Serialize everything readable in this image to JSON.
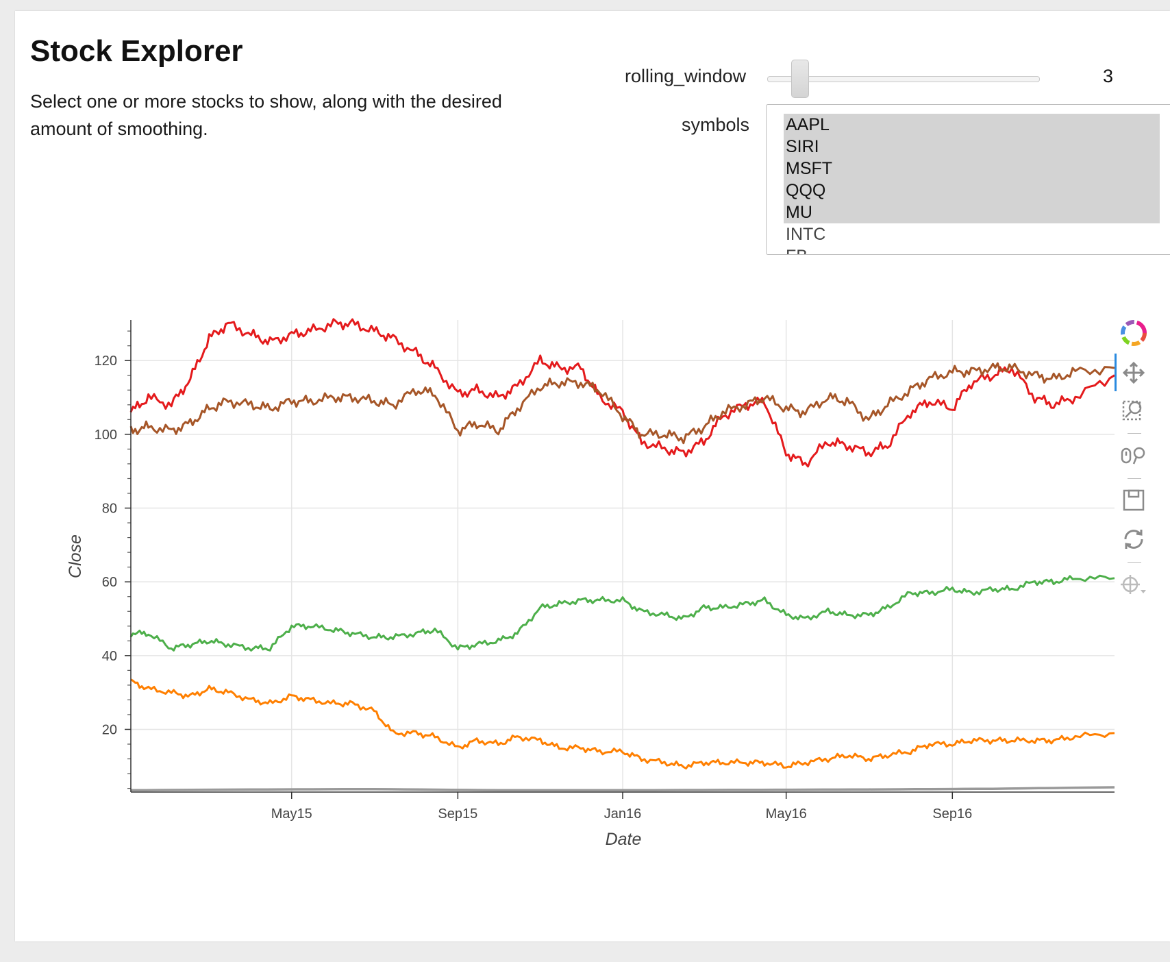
{
  "page": {
    "title": "Stock Explorer",
    "description": "Select one or more stocks to show, along with the desired amount of smoothing."
  },
  "controls": {
    "rolling_window": {
      "label": "rolling_window",
      "value": "3",
      "min": 1,
      "max": 20
    },
    "symbols": {
      "label": "symbols",
      "options": [
        {
          "label": "AAPL",
          "selected": true
        },
        {
          "label": "SIRI",
          "selected": true
        },
        {
          "label": "MSFT",
          "selected": true
        },
        {
          "label": "QQQ",
          "selected": true
        },
        {
          "label": "MU",
          "selected": true
        },
        {
          "label": "INTC",
          "selected": false
        },
        {
          "label": "FB",
          "selected": false
        }
      ]
    }
  },
  "toolbar": {
    "tools": [
      "bokeh-logo-icon",
      "pan-icon",
      "box-zoom-icon",
      "wheel-zoom-icon",
      "save-icon",
      "reset-icon",
      "crosshair-icon"
    ]
  },
  "chart_data": {
    "type": "line",
    "xlabel": "Date",
    "ylabel": "Close",
    "x_range": [
      "2015-01-02",
      "2016-12-30"
    ],
    "ylim": [
      3,
      131
    ],
    "yticks": [
      "20",
      "40",
      "60",
      "80",
      "100",
      "120"
    ],
    "xticks": [
      {
        "date": "2015-05-01",
        "label": "May15"
      },
      {
        "date": "2015-09-01",
        "label": "Sep15"
      },
      {
        "date": "2016-01-01",
        "label": "Jan16"
      },
      {
        "date": "2016-05-01",
        "label": "May16"
      },
      {
        "date": "2016-09-01",
        "label": "Sep16"
      }
    ],
    "grid": true,
    "series": [
      {
        "color": "#e41a1c",
        "points": [
          [
            "2015-01-02",
            106
          ],
          [
            "2015-01-15",
            110
          ],
          [
            "2015-02-01",
            108
          ],
          [
            "2015-02-15",
            115
          ],
          [
            "2015-03-01",
            126
          ],
          [
            "2015-03-15",
            130
          ],
          [
            "2015-04-01",
            127
          ],
          [
            "2015-04-15",
            125
          ],
          [
            "2015-05-01",
            127
          ],
          [
            "2015-05-15",
            128
          ],
          [
            "2015-06-01",
            130
          ],
          [
            "2015-06-15",
            130
          ],
          [
            "2015-07-01",
            128
          ],
          [
            "2015-07-15",
            126
          ],
          [
            "2015-08-01",
            122
          ],
          [
            "2015-08-15",
            118
          ],
          [
            "2015-09-01",
            111
          ],
          [
            "2015-09-15",
            112
          ],
          [
            "2015-10-01",
            110
          ],
          [
            "2015-10-15",
            113
          ],
          [
            "2015-11-01",
            120
          ],
          [
            "2015-11-15",
            118
          ],
          [
            "2015-12-01",
            118
          ],
          [
            "2015-12-15",
            110
          ],
          [
            "2016-01-01",
            106
          ],
          [
            "2016-01-15",
            98
          ],
          [
            "2016-02-01",
            96
          ],
          [
            "2016-02-15",
            95
          ],
          [
            "2016-03-01",
            98
          ],
          [
            "2016-03-15",
            105
          ],
          [
            "2016-04-01",
            108
          ],
          [
            "2016-04-15",
            109
          ],
          [
            "2016-05-01",
            95
          ],
          [
            "2016-05-15",
            92
          ],
          [
            "2016-06-01",
            98
          ],
          [
            "2016-06-15",
            97
          ],
          [
            "2016-07-01",
            95
          ],
          [
            "2016-07-15",
            97
          ],
          [
            "2016-08-01",
            106
          ],
          [
            "2016-08-15",
            109
          ],
          [
            "2016-09-01",
            107
          ],
          [
            "2016-09-15",
            114
          ],
          [
            "2016-10-01",
            116
          ],
          [
            "2016-10-15",
            118
          ],
          [
            "2016-11-01",
            110
          ],
          [
            "2016-11-15",
            108
          ],
          [
            "2016-12-01",
            110
          ],
          [
            "2016-12-30",
            116
          ]
        ]
      },
      {
        "color": "#a65628",
        "points": [
          [
            "2015-01-02",
            101
          ],
          [
            "2015-01-15",
            102
          ],
          [
            "2015-02-01",
            101
          ],
          [
            "2015-02-15",
            103
          ],
          [
            "2015-03-01",
            107
          ],
          [
            "2015-03-15",
            109
          ],
          [
            "2015-04-01",
            108
          ],
          [
            "2015-04-15",
            107
          ],
          [
            "2015-05-01",
            109
          ],
          [
            "2015-05-15",
            109
          ],
          [
            "2015-06-01",
            110
          ],
          [
            "2015-06-15",
            110
          ],
          [
            "2015-07-01",
            109
          ],
          [
            "2015-07-15",
            108
          ],
          [
            "2015-08-01",
            112
          ],
          [
            "2015-08-15",
            111
          ],
          [
            "2015-09-01",
            101
          ],
          [
            "2015-09-15",
            103
          ],
          [
            "2015-10-01",
            101
          ],
          [
            "2015-10-15",
            107
          ],
          [
            "2015-11-01",
            113
          ],
          [
            "2015-11-15",
            114
          ],
          [
            "2015-12-01",
            114
          ],
          [
            "2015-12-15",
            112
          ],
          [
            "2016-01-01",
            105
          ],
          [
            "2016-01-15",
            100
          ],
          [
            "2016-02-01",
            100
          ],
          [
            "2016-02-15",
            99
          ],
          [
            "2016-03-01",
            102
          ],
          [
            "2016-03-15",
            106
          ],
          [
            "2016-04-01",
            108
          ],
          [
            "2016-04-15",
            110
          ],
          [
            "2016-05-01",
            107
          ],
          [
            "2016-05-15",
            106
          ],
          [
            "2016-06-01",
            110
          ],
          [
            "2016-06-15",
            109
          ],
          [
            "2016-07-01",
            104
          ],
          [
            "2016-07-15",
            108
          ],
          [
            "2016-08-01",
            112
          ],
          [
            "2016-08-15",
            115
          ],
          [
            "2016-09-01",
            117
          ],
          [
            "2016-09-15",
            117
          ],
          [
            "2016-10-01",
            118
          ],
          [
            "2016-10-15",
            118
          ],
          [
            "2016-11-01",
            116
          ],
          [
            "2016-11-15",
            115
          ],
          [
            "2016-12-01",
            117
          ],
          [
            "2016-12-30",
            118
          ]
        ]
      },
      {
        "color": "#4daf4a",
        "points": [
          [
            "2015-01-02",
            46
          ],
          [
            "2015-01-15",
            46
          ],
          [
            "2015-02-01",
            42
          ],
          [
            "2015-02-15",
            43
          ],
          [
            "2015-03-01",
            44
          ],
          [
            "2015-03-15",
            43
          ],
          [
            "2015-04-01",
            42
          ],
          [
            "2015-04-15",
            42
          ],
          [
            "2015-05-01",
            48
          ],
          [
            "2015-05-15",
            48
          ],
          [
            "2015-06-01",
            47
          ],
          [
            "2015-06-15",
            46
          ],
          [
            "2015-07-01",
            45
          ],
          [
            "2015-07-15",
            45
          ],
          [
            "2015-08-01",
            46
          ],
          [
            "2015-08-15",
            47
          ],
          [
            "2015-09-01",
            42
          ],
          [
            "2015-09-15",
            43
          ],
          [
            "2015-10-01",
            44
          ],
          [
            "2015-10-15",
            46
          ],
          [
            "2015-11-01",
            53
          ],
          [
            "2015-11-15",
            54
          ],
          [
            "2015-12-01",
            55
          ],
          [
            "2015-12-15",
            55
          ],
          [
            "2016-01-01",
            55
          ],
          [
            "2016-01-15",
            52
          ],
          [
            "2016-02-01",
            51
          ],
          [
            "2016-02-15",
            50
          ],
          [
            "2016-03-01",
            53
          ],
          [
            "2016-03-15",
            53
          ],
          [
            "2016-04-01",
            54
          ],
          [
            "2016-04-15",
            55
          ],
          [
            "2016-05-01",
            51
          ],
          [
            "2016-05-15",
            50
          ],
          [
            "2016-06-01",
            52
          ],
          [
            "2016-06-15",
            51
          ],
          [
            "2016-07-01",
            51
          ],
          [
            "2016-07-15",
            53
          ],
          [
            "2016-08-01",
            57
          ],
          [
            "2016-08-15",
            57
          ],
          [
            "2016-09-01",
            58
          ],
          [
            "2016-09-15",
            57
          ],
          [
            "2016-10-01",
            58
          ],
          [
            "2016-10-15",
            58
          ],
          [
            "2016-11-01",
            60
          ],
          [
            "2016-11-15",
            60
          ],
          [
            "2016-12-01",
            61
          ],
          [
            "2016-12-30",
            61
          ]
        ]
      },
      {
        "color": "#ff7f00",
        "points": [
          [
            "2015-01-02",
            33
          ],
          [
            "2015-01-15",
            31
          ],
          [
            "2015-02-01",
            30
          ],
          [
            "2015-02-15",
            29
          ],
          [
            "2015-03-01",
            31
          ],
          [
            "2015-03-15",
            30
          ],
          [
            "2015-04-01",
            28
          ],
          [
            "2015-04-15",
            27
          ],
          [
            "2015-05-01",
            29
          ],
          [
            "2015-05-15",
            28
          ],
          [
            "2015-06-01",
            27
          ],
          [
            "2015-06-15",
            27
          ],
          [
            "2015-07-01",
            25
          ],
          [
            "2015-07-15",
            19
          ],
          [
            "2015-08-01",
            19
          ],
          [
            "2015-08-15",
            18
          ],
          [
            "2015-09-01",
            15
          ],
          [
            "2015-09-15",
            17
          ],
          [
            "2015-10-01",
            16
          ],
          [
            "2015-10-15",
            18
          ],
          [
            "2015-11-01",
            17
          ],
          [
            "2015-11-15",
            15
          ],
          [
            "2015-12-01",
            15
          ],
          [
            "2015-12-15",
            14
          ],
          [
            "2016-01-01",
            14
          ],
          [
            "2016-01-15",
            12
          ],
          [
            "2016-02-01",
            11
          ],
          [
            "2016-02-15",
            10
          ],
          [
            "2016-03-01",
            11
          ],
          [
            "2016-03-15",
            11
          ],
          [
            "2016-04-01",
            11
          ],
          [
            "2016-04-15",
            11
          ],
          [
            "2016-05-01",
            10
          ],
          [
            "2016-05-15",
            11
          ],
          [
            "2016-06-01",
            12
          ],
          [
            "2016-06-15",
            13
          ],
          [
            "2016-07-01",
            12
          ],
          [
            "2016-07-15",
            13
          ],
          [
            "2016-08-01",
            14
          ],
          [
            "2016-08-15",
            16
          ],
          [
            "2016-09-01",
            16
          ],
          [
            "2016-09-15",
            17
          ],
          [
            "2016-10-01",
            17
          ],
          [
            "2016-10-15",
            17
          ],
          [
            "2016-11-01",
            17
          ],
          [
            "2016-11-15",
            17
          ],
          [
            "2016-12-01",
            18
          ],
          [
            "2016-12-30",
            19
          ]
        ]
      },
      {
        "color": "#999999",
        "points": [
          [
            "2015-01-02",
            3.5
          ],
          [
            "2015-04-01",
            3.7
          ],
          [
            "2015-07-01",
            3.8
          ],
          [
            "2015-10-01",
            3.5
          ],
          [
            "2016-01-01",
            3.5
          ],
          [
            "2016-04-01",
            3.6
          ],
          [
            "2016-07-01",
            3.7
          ],
          [
            "2016-10-01",
            3.9
          ],
          [
            "2016-12-30",
            4.3
          ]
        ]
      }
    ]
  }
}
